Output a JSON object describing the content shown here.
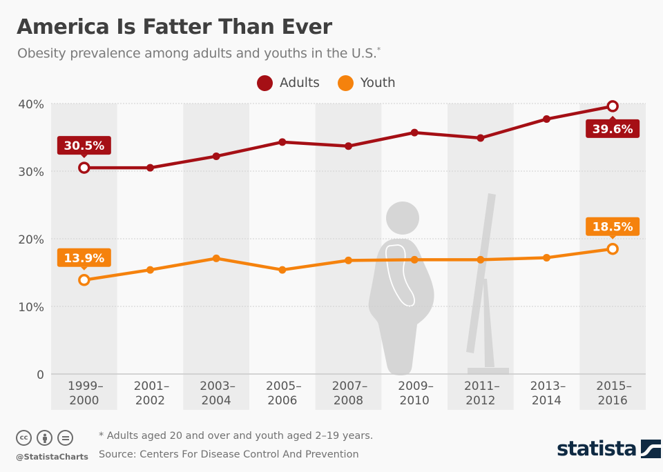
{
  "header": {
    "title": "America Is Fatter Than Ever",
    "subtitle": "Obesity prevalence among adults and youths in the U.S.",
    "subtitle_marker": "*"
  },
  "legend": [
    {
      "label": "Adults",
      "color": "#a50f15"
    },
    {
      "label": "Youth",
      "color": "#f5820d"
    }
  ],
  "chart_data": {
    "type": "line",
    "title": "America Is Fatter Than Ever",
    "subtitle": "Obesity prevalence among adults and youths in the U.S.*",
    "xlabel": "",
    "ylabel": "",
    "categories": [
      [
        "1999–",
        "2000"
      ],
      [
        "2001–",
        "2002"
      ],
      [
        "2003–",
        "2004"
      ],
      [
        "2005–",
        "2006"
      ],
      [
        "2007–",
        "2008"
      ],
      [
        "2009–",
        "2010"
      ],
      [
        "2011–",
        "2012"
      ],
      [
        "2013–",
        "2014"
      ],
      [
        "2015–",
        "2016"
      ]
    ],
    "series": [
      {
        "name": "Adults",
        "color": "#a50f15",
        "values": [
          30.5,
          30.5,
          32.2,
          34.3,
          33.7,
          35.7,
          34.9,
          37.7,
          39.6
        ],
        "labels": {
          "first": "30.5%",
          "last": "39.6%"
        }
      },
      {
        "name": "Youth",
        "color": "#f5820d",
        "values": [
          13.9,
          15.4,
          17.1,
          15.4,
          16.8,
          16.9,
          16.9,
          17.2,
          18.5
        ],
        "labels": {
          "first": "13.9%",
          "last": "18.5%"
        }
      }
    ],
    "ylim": [
      0,
      40
    ],
    "yticks": [
      0,
      10,
      20,
      30,
      40
    ],
    "ytick_labels": [
      "0",
      "10%",
      "20%",
      "30%",
      "40%"
    ],
    "grid": true,
    "legend_position": "top-center",
    "band_color": "#ececec"
  },
  "footer": {
    "note": "* Adults aged 20 and over and youth aged 2–19 years.",
    "source": "Source: Centers For Disease Control And Prevention",
    "handle": "@StatistaCharts",
    "license_icons": [
      "cc",
      "by",
      "nd"
    ],
    "logo_text": "statista"
  }
}
